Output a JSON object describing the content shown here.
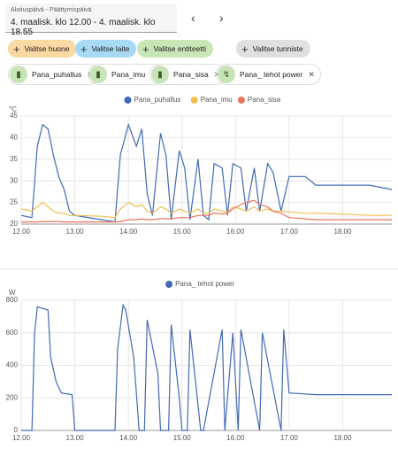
{
  "header": {
    "date_label": "Aloituspäivä - Päättymispäivä",
    "date_value": "4. maalisk. klo 12.00 - 4. maalisk. klo 18.55"
  },
  "filters": [
    "Valitse huone",
    "Valitse laite",
    "Valitse entiteetti",
    "Valitse tunniste"
  ],
  "entities": [
    "Pana_puhallus",
    "Pana_imu",
    "Pana_sisa",
    "Pana_ tehot power"
  ],
  "chart_data": [
    {
      "type": "line",
      "y_label": "°C",
      "x": [
        12.0,
        12.2,
        12.3,
        12.4,
        12.5,
        12.6,
        12.7,
        12.8,
        12.9,
        13.0,
        13.5,
        13.75,
        13.85,
        14.0,
        14.15,
        14.25,
        14.35,
        14.45,
        14.6,
        14.7,
        14.8,
        14.95,
        15.05,
        15.15,
        15.3,
        15.4,
        15.5,
        15.6,
        15.75,
        15.85,
        15.95,
        16.1,
        16.2,
        16.35,
        16.45,
        16.6,
        16.7,
        16.85,
        17.0,
        17.3,
        17.5,
        18.0,
        18.5,
        18.9167
      ],
      "xlim": [
        12,
        18.9167
      ],
      "xticks": [
        {
          "value": 12,
          "label": "12.00"
        },
        {
          "value": 13,
          "label": "13.00"
        },
        {
          "value": 14,
          "label": "14.00"
        },
        {
          "value": 15,
          "label": "15.00"
        },
        {
          "value": 16,
          "label": "16.00"
        },
        {
          "value": 17,
          "label": "17.00"
        },
        {
          "value": 18,
          "label": "18.00"
        }
      ],
      "ylim": [
        20,
        45
      ],
      "yticks": [
        20,
        25,
        30,
        35,
        40,
        45
      ],
      "grid": true,
      "series": [
        {
          "name": "Pana_puhallus",
          "color": "#4269b5",
          "values": [
            22,
            21.5,
            38,
            43,
            42,
            36,
            31,
            28,
            23,
            22,
            21,
            20.5,
            36,
            43,
            38,
            42,
            27,
            22,
            41,
            36,
            21,
            37,
            33,
            21,
            35,
            22,
            21,
            34,
            33,
            22,
            34,
            33,
            23,
            33,
            23,
            34,
            32,
            23,
            31,
            31,
            29,
            29,
            29,
            28
          ]
        },
        {
          "name": "Pana_imu",
          "color": "#f0bd4f",
          "values": [
            23.5,
            23,
            24,
            25,
            24,
            23,
            22.5,
            22.5,
            22,
            22,
            21.8,
            21.5,
            23.5,
            25,
            24,
            24.5,
            23,
            22.5,
            24,
            23.5,
            22.5,
            23.5,
            23,
            22.5,
            23.5,
            22.5,
            22.5,
            23.5,
            23,
            22.8,
            24,
            23.5,
            23,
            24,
            23,
            23.5,
            23,
            23,
            22.8,
            22.5,
            22.5,
            22.3,
            22,
            22
          ]
        },
        {
          "name": "Pana_sisa",
          "color": "#e8735e",
          "values": [
            20.5,
            20.5,
            20.5,
            20.6,
            20.6,
            20.6,
            20.6,
            20.5,
            20.5,
            20.5,
            20.5,
            20.5,
            20.6,
            21,
            21,
            21.2,
            21,
            21,
            21.3,
            21.2,
            21.2,
            21.5,
            21.5,
            21.5,
            22,
            22,
            22,
            22.5,
            22.3,
            22.5,
            23.5,
            24.5,
            25,
            25.5,
            24.5,
            24,
            23,
            22.5,
            21.5,
            21.2,
            21,
            21,
            21,
            21
          ]
        }
      ]
    },
    {
      "type": "line",
      "y_label": "W",
      "x": [
        12.0,
        12.2,
        12.25,
        12.3,
        12.5,
        12.55,
        12.65,
        12.75,
        12.95,
        13.0,
        13.75,
        13.8,
        13.9,
        13.95,
        14.1,
        14.2,
        14.3,
        14.35,
        14.55,
        14.6,
        14.75,
        14.8,
        14.95,
        15.0,
        15.1,
        15.15,
        15.35,
        15.4,
        15.75,
        15.8,
        15.95,
        16.05,
        16.1,
        16.45,
        16.5,
        16.85,
        16.9,
        17.0,
        17.5,
        18.9167
      ],
      "xlim": [
        12,
        18.9167
      ],
      "xticks": [
        {
          "value": 12,
          "label": "12.00"
        },
        {
          "value": 13,
          "label": "13.00"
        },
        {
          "value": 14,
          "label": "14.00"
        },
        {
          "value": 15,
          "label": "15.00"
        },
        {
          "value": 16,
          "label": "16.00"
        },
        {
          "value": 17,
          "label": "17.00"
        },
        {
          "value": 18,
          "label": "18.00"
        }
      ],
      "ylim": [
        0,
        800
      ],
      "yticks": [
        0,
        200,
        400,
        600,
        800
      ],
      "grid": true,
      "series": [
        {
          "name": "Pana_ tehot power",
          "color": "#4269b5",
          "values": [
            0,
            0,
            600,
            760,
            740,
            450,
            300,
            230,
            220,
            0,
            0,
            500,
            770,
            740,
            450,
            0,
            0,
            680,
            350,
            0,
            0,
            650,
            200,
            0,
            0,
            620,
            0,
            0,
            620,
            0,
            600,
            0,
            620,
            0,
            600,
            0,
            620,
            230,
            220,
            220
          ]
        }
      ]
    }
  ]
}
